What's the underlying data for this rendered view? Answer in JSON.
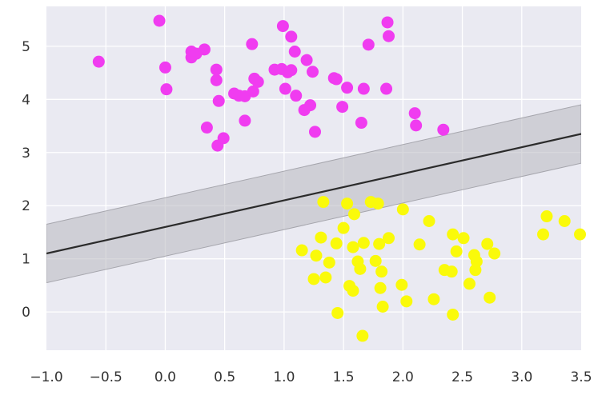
{
  "chart_data": {
    "type": "scatter",
    "title": "",
    "xlabel": "",
    "ylabel": "",
    "xlim": [
      -1.0,
      3.5
    ],
    "ylim": [
      -0.72,
      5.75
    ],
    "grid": true,
    "x_ticks": [
      -1.0,
      -0.5,
      0.0,
      0.5,
      1.0,
      1.5,
      2.0,
      2.5,
      3.0,
      3.5
    ],
    "x_tick_labels": [
      "−1.0",
      "−0.5",
      "0.0",
      "0.5",
      "1.0",
      "1.5",
      "2.0",
      "2.5",
      "3.0",
      "3.5"
    ],
    "y_ticks": [
      0,
      1,
      2,
      3,
      4,
      5
    ],
    "y_tick_labels": [
      "0",
      "1",
      "2",
      "3",
      "4",
      "5"
    ],
    "colors": {
      "background": "#eaeaf2",
      "grid": "#ffffff",
      "class_a": "#f03cf0",
      "class_b": "#fafa0a",
      "line": "#2b2b2b",
      "margin_band": "#b8b8bf"
    },
    "decision_line": {
      "slope": 0.5,
      "intercept": 1.6
    },
    "margin_halfwidth": 0.55,
    "series": [
      {
        "points": [
          [
            -0.56,
            4.71
          ],
          [
            -0.05,
            5.48
          ],
          [
            0.0,
            4.6
          ],
          [
            0.01,
            4.19
          ],
          [
            0.22,
            4.9
          ],
          [
            0.22,
            4.79
          ],
          [
            0.26,
            4.86
          ],
          [
            0.33,
            4.94
          ],
          [
            0.35,
            3.47
          ],
          [
            0.43,
            4.56
          ],
          [
            0.43,
            4.36
          ],
          [
            0.44,
            3.13
          ],
          [
            0.45,
            3.97
          ],
          [
            0.49,
            3.27
          ],
          [
            0.58,
            4.11
          ],
          [
            0.62,
            4.07
          ],
          [
            0.67,
            3.6
          ],
          [
            0.67,
            4.06
          ],
          [
            0.73,
            5.04
          ],
          [
            0.74,
            4.15
          ],
          [
            0.75,
            4.39
          ],
          [
            0.78,
            4.33
          ],
          [
            0.92,
            4.56
          ],
          [
            0.98,
            4.57
          ],
          [
            0.99,
            5.38
          ],
          [
            1.01,
            4.2
          ],
          [
            1.03,
            4.51
          ],
          [
            1.06,
            4.55
          ],
          [
            1.06,
            5.18
          ],
          [
            1.09,
            4.9
          ],
          [
            1.1,
            4.07
          ],
          [
            1.17,
            3.8
          ],
          [
            1.19,
            4.74
          ],
          [
            1.22,
            3.89
          ],
          [
            1.24,
            4.52
          ],
          [
            1.26,
            3.39
          ],
          [
            1.42,
            4.4
          ],
          [
            1.44,
            4.38
          ],
          [
            1.49,
            3.86
          ],
          [
            1.53,
            4.22
          ],
          [
            1.65,
            3.56
          ],
          [
            1.67,
            4.2
          ],
          [
            1.71,
            5.03
          ],
          [
            1.86,
            4.2
          ],
          [
            1.87,
            5.45
          ],
          [
            1.88,
            5.19
          ],
          [
            2.1,
            3.74
          ],
          [
            2.11,
            3.51
          ],
          [
            2.34,
            3.43
          ]
        ]
      },
      {
        "points": [
          [
            1.15,
            1.16
          ],
          [
            1.25,
            0.62
          ],
          [
            1.27,
            1.06
          ],
          [
            1.31,
            1.4
          ],
          [
            1.33,
            2.07
          ],
          [
            1.35,
            0.65
          ],
          [
            1.38,
            0.93
          ],
          [
            1.44,
            1.29
          ],
          [
            1.45,
            -0.02
          ],
          [
            1.5,
            1.58
          ],
          [
            1.53,
            2.04
          ],
          [
            1.55,
            0.49
          ],
          [
            1.58,
            1.22
          ],
          [
            1.58,
            0.4
          ],
          [
            1.59,
            1.84
          ],
          [
            1.62,
            0.95
          ],
          [
            1.64,
            0.81
          ],
          [
            1.66,
            -0.45
          ],
          [
            1.67,
            1.3
          ],
          [
            1.73,
            2.07
          ],
          [
            1.77,
            0.96
          ],
          [
            1.79,
            2.04
          ],
          [
            1.8,
            1.28
          ],
          [
            1.81,
            0.45
          ],
          [
            1.82,
            0.76
          ],
          [
            1.83,
            0.1
          ],
          [
            1.88,
            1.39
          ],
          [
            1.99,
            0.51
          ],
          [
            2.0,
            1.93
          ],
          [
            2.03,
            0.2
          ],
          [
            2.14,
            1.27
          ],
          [
            2.22,
            1.71
          ],
          [
            2.26,
            0.24
          ],
          [
            2.35,
            0.79
          ],
          [
            2.41,
            0.76
          ],
          [
            2.42,
            1.46
          ],
          [
            2.42,
            -0.05
          ],
          [
            2.45,
            1.14
          ],
          [
            2.51,
            1.39
          ],
          [
            2.56,
            0.53
          ],
          [
            2.6,
            1.07
          ],
          [
            2.61,
            0.79
          ],
          [
            2.62,
            0.95
          ],
          [
            2.71,
            1.28
          ],
          [
            2.73,
            0.27
          ],
          [
            2.77,
            1.1
          ],
          [
            3.18,
            1.46
          ],
          [
            3.21,
            1.8
          ],
          [
            3.36,
            1.71
          ],
          [
            3.49,
            1.46
          ]
        ]
      }
    ]
  }
}
